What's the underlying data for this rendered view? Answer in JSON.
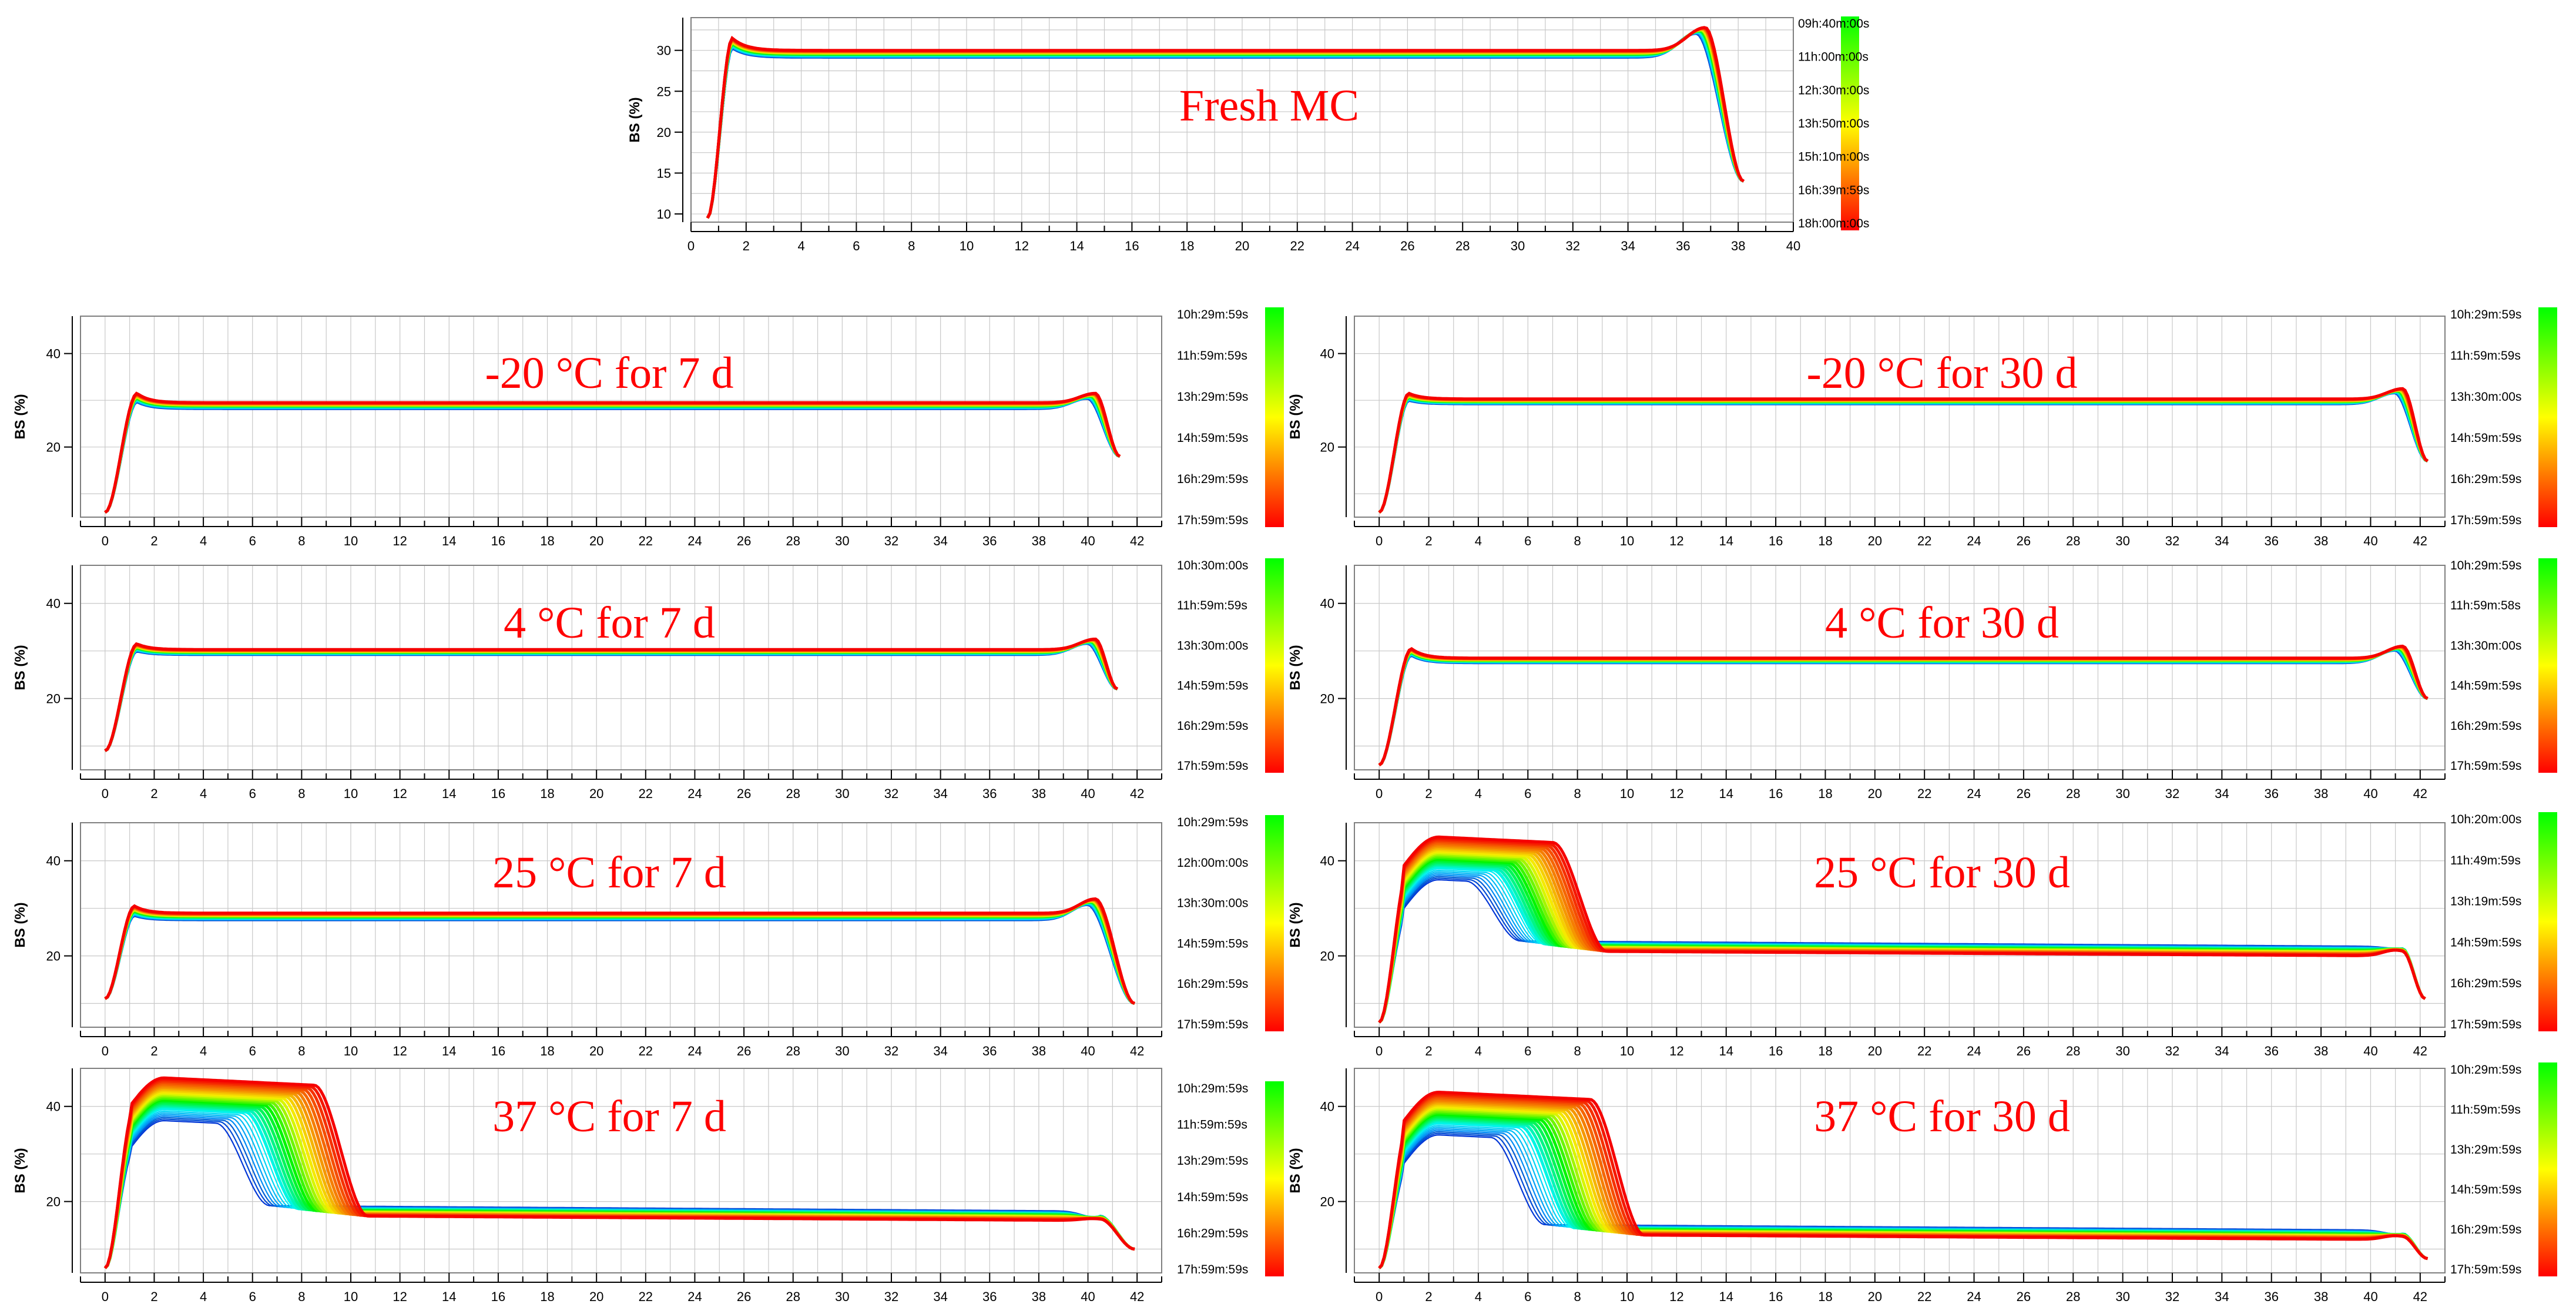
{
  "colors": {
    "title": "#ff0000",
    "grid": "#c8c8c8",
    "frame": "#7f7f7f",
    "gradient_top": "#00ff00",
    "gradient_mid": "#ffff00",
    "gradient_bottom": "#ff0000"
  },
  "chart_data": [
    {
      "type": "line",
      "title": "Fresh MC",
      "ylabel": "BS (%)",
      "xlim": [
        0,
        40
      ],
      "ylim": [
        9,
        34
      ],
      "xticks_step": 2,
      "yticks": [
        10,
        15,
        20,
        25,
        30
      ],
      "legend": "colorbar-right",
      "colorbar_labels": [
        "09h:40m:00s",
        "11h:00m:00s",
        "12h:30m:00s",
        "13h:50m:00s",
        "15h:10m:00s",
        "16h:39m:59s",
        "18h:00m:00s"
      ],
      "profile": {
        "x_start": 0.6,
        "rise_end": 1.5,
        "peak": 31.5,
        "plateau": 30.0,
        "end_peak_x": 36.8,
        "end_peak": 32.8,
        "x_end": 38.2,
        "y_start": 9.5,
        "y_end": 14.0,
        "spread": 1.2
      },
      "profile_type": "flat"
    },
    {
      "type": "line",
      "title": "-20 °C for 7 d",
      "ylabel": "BS (%)",
      "xlim": [
        -1,
        43
      ],
      "ylim": [
        5,
        48
      ],
      "xticks_step": 2,
      "yticks": [
        20,
        40
      ],
      "legend": "colorbar-right",
      "colorbar_labels": [
        "10h:29m:59s",
        "11h:59m:59s",
        "13h:29m:59s",
        "14h:59m:59s",
        "16h:29m:59s",
        "17h:59m:59s"
      ],
      "profile": {
        "x_start": 0.0,
        "rise_end": 1.3,
        "peak": 31.5,
        "plateau": 29.5,
        "end_peak_x": 40.3,
        "end_peak": 31.5,
        "x_end": 41.3,
        "y_start": 6.0,
        "y_end": 18.0,
        "spread": 1.8
      },
      "profile_type": "flat"
    },
    {
      "type": "line",
      "title": "-20 °C for 30 d",
      "ylabel": "BS (%)",
      "xlim": [
        -1,
        43
      ],
      "ylim": [
        5,
        48
      ],
      "xticks_step": 2,
      "yticks": [
        20,
        40
      ],
      "legend": "colorbar-right",
      "colorbar_labels": [
        "10h:29m:59s",
        "11h:59m:59s",
        "13h:30m:00s",
        "14h:59m:59s",
        "16h:29m:59s",
        "17h:59m:59s"
      ],
      "profile": {
        "x_start": 0.0,
        "rise_end": 1.2,
        "peak": 31.5,
        "plateau": 30.3,
        "end_peak_x": 41.3,
        "end_peak": 32.5,
        "x_end": 42.3,
        "y_start": 6.0,
        "y_end": 17.0,
        "spread": 1.5
      },
      "profile_type": "flat"
    },
    {
      "type": "line",
      "title": "4 °C for 7 d",
      "ylabel": "BS (%)",
      "xlim": [
        -1,
        43
      ],
      "ylim": [
        5,
        48
      ],
      "xticks_step": 2,
      "yticks": [
        20,
        40
      ],
      "legend": "colorbar-right",
      "colorbar_labels": [
        "10h:30m:00s",
        "11h:59m:59s",
        "13h:30m:00s",
        "14h:59m:59s",
        "16h:29m:59s",
        "17h:59m:59s"
      ],
      "profile": {
        "x_start": 0.0,
        "rise_end": 1.3,
        "peak": 31.5,
        "plateau": 30.3,
        "end_peak_x": 40.3,
        "end_peak": 32.5,
        "x_end": 41.2,
        "y_start": 9.0,
        "y_end": 22.0,
        "spread": 1.5
      },
      "profile_type": "flat"
    },
    {
      "type": "line",
      "title": "4 °C for 30 d",
      "ylabel": "BS (%)",
      "xlim": [
        -1,
        43
      ],
      "ylim": [
        5,
        48
      ],
      "xticks_step": 2,
      "yticks": [
        20,
        40
      ],
      "legend": "colorbar-right",
      "colorbar_labels": [
        "10h:29m:59s",
        "11h:59m:58s",
        "13h:30m:00s",
        "14h:59m:59s",
        "16h:29m:59s",
        "17h:59m:59s"
      ],
      "profile": {
        "x_start": 0.0,
        "rise_end": 1.3,
        "peak": 30.5,
        "plateau": 28.5,
        "end_peak_x": 41.3,
        "end_peak": 31.0,
        "x_end": 42.3,
        "y_start": 6.0,
        "y_end": 20.0,
        "spread": 1.4
      },
      "profile_type": "flat"
    },
    {
      "type": "line",
      "title": "25 °C for 7 d",
      "ylabel": "BS (%)",
      "xlim": [
        -1,
        43
      ],
      "ylim": [
        5,
        48
      ],
      "xticks_step": 2,
      "yticks": [
        20,
        40
      ],
      "legend": "colorbar-right",
      "colorbar_labels": [
        "10h:29m:59s",
        "12h:00m:00s",
        "13h:30m:00s",
        "14h:59m:59s",
        "16h:29m:59s",
        "17h:59m:59s"
      ],
      "profile": {
        "x_start": 0.0,
        "rise_end": 1.2,
        "peak": 30.5,
        "plateau": 29.0,
        "end_peak_x": 40.3,
        "end_peak": 32.0,
        "x_end": 41.9,
        "y_start": 11.0,
        "y_end": 10.0,
        "spread": 2.0
      },
      "profile_type": "flat"
    },
    {
      "type": "line",
      "title": "25 °C for 30 d",
      "ylabel": "BS (%)",
      "xlim": [
        -1,
        43
      ],
      "ylim": [
        5,
        48
      ],
      "xticks_step": 2,
      "yticks": [
        20,
        40
      ],
      "legend": "colorbar-right",
      "colorbar_labels": [
        "10h:20m:00s",
        "11h:49m:59s",
        "13h:19m:59s",
        "14h:59m:59s",
        "16h:29m:59s",
        "17h:59m:59s"
      ],
      "profile": {
        "x_start": 0.0,
        "peak": 45.0,
        "plateau": 21.0,
        "plateau_end": 20.0,
        "drop_x": 7.0,
        "drop_min": 3.5,
        "end_peak_x": 41.0,
        "end_peak": 21.5,
        "x_end": 42.2,
        "y_start": 6.0,
        "y_end": 11.0
      },
      "profile_type": "migration"
    },
    {
      "type": "line",
      "title": "37 °C for 7 d",
      "ylabel": "BS (%)",
      "xlim": [
        -1,
        43
      ],
      "ylim": [
        5,
        48
      ],
      "xticks_step": 2,
      "yticks": [
        20,
        40
      ],
      "legend": "colorbar-right",
      "colorbar_labels": [
        "10h:29m:59s",
        "11h:59m:59s",
        "13h:29m:59s",
        "14h:59m:59s",
        "16h:29m:59s",
        "17h:59m:59s"
      ],
      "profile": {
        "x_start": 0.0,
        "peak": 46.0,
        "plateau": 17.0,
        "plateau_end": 16.0,
        "drop_x": 8.5,
        "drop_min": 4.0,
        "end_peak_x": 40.2,
        "end_peak": 16.5,
        "x_end": 41.9,
        "y_start": 6.0,
        "y_end": 10.0
      },
      "profile_type": "migration"
    },
    {
      "type": "line",
      "title": "37 °C for 30 d",
      "ylabel": "BS (%)",
      "xlim": [
        -1,
        43
      ],
      "ylim": [
        5,
        48
      ],
      "xticks_step": 2,
      "yticks": [
        20,
        40
      ],
      "legend": "colorbar-right",
      "colorbar_labels": [
        "10h:29m:59s",
        "11h:59m:59s",
        "13h:29m:59s",
        "14h:59m:59s",
        "16h:29m:59s",
        "17h:59m:59s"
      ],
      "profile": {
        "x_start": 0.0,
        "peak": 43.0,
        "plateau": 13.0,
        "plateau_end": 12.0,
        "drop_x": 8.5,
        "drop_min": 4.0,
        "end_peak_x": 41.0,
        "end_peak": 13.0,
        "x_end": 42.3,
        "y_start": 6.0,
        "y_end": 8.0
      },
      "profile_type": "migration"
    }
  ]
}
